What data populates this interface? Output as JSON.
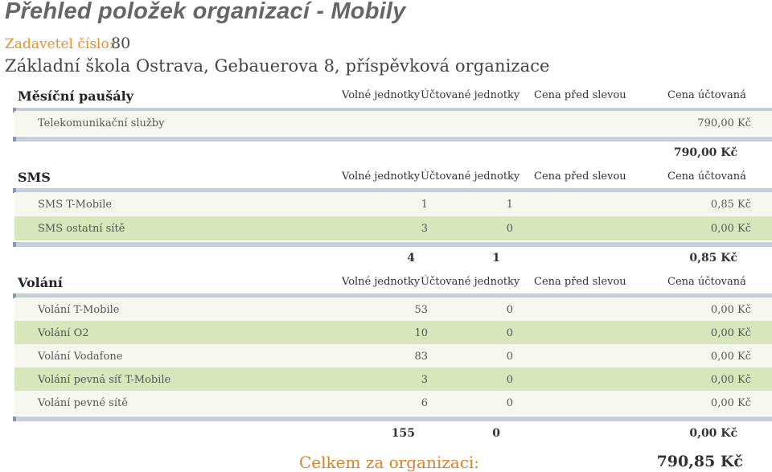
{
  "title": "Přehled položek organizací - Mobily",
  "payer": {
    "label": "Zadavetel číslo:",
    "value": "80"
  },
  "org_name": "Základní škola Ostrava, Gebauerova 8, příspěvková organizace",
  "columns": {
    "free": "Volné jednotky",
    "billed": "Účtované jednotky",
    "pre_discount": "Cena před slevou",
    "charged": "Cena účtovaná"
  },
  "sections": {
    "monthly": {
      "name": "Měsíční paušály",
      "rows": [
        {
          "label": "Telekomunikační služby",
          "free": "",
          "billed": "",
          "charged": "790,00 Kč"
        }
      ],
      "total": {
        "free": "",
        "billed": "",
        "charged": "790,00 Kč"
      }
    },
    "sms": {
      "name": "SMS",
      "rows": [
        {
          "label": "SMS T-Mobile",
          "free": "1",
          "billed": "1",
          "charged": "0,85 Kč"
        },
        {
          "label": "SMS ostatní sítě",
          "free": "3",
          "billed": "0",
          "charged": "0,00 Kč"
        }
      ],
      "total": {
        "free": "4",
        "billed": "1",
        "charged": "0,85 Kč"
      }
    },
    "calls": {
      "name": "Volání",
      "rows": [
        {
          "label": "Volání T-Mobile",
          "free": "53",
          "billed": "0",
          "charged": "0,00 Kč"
        },
        {
          "label": "Volání O2",
          "free": "10",
          "billed": "0",
          "charged": "0,00 Kč"
        },
        {
          "label": "Volání Vodafone",
          "free": "83",
          "billed": "0",
          "charged": "0,00 Kč"
        },
        {
          "label": "Volání pevná síť T-Mobile",
          "free": "3",
          "billed": "0",
          "charged": "0,00 Kč"
        },
        {
          "label": "Volání pevné sítě",
          "free": "6",
          "billed": "0",
          "charged": "0,00 Kč"
        }
      ],
      "total": {
        "free": "155",
        "billed": "0",
        "charged": "0,00 Kč"
      }
    }
  },
  "grand_total": {
    "label": "Celkem za organizaci:",
    "value": "790,85 Kč"
  }
}
